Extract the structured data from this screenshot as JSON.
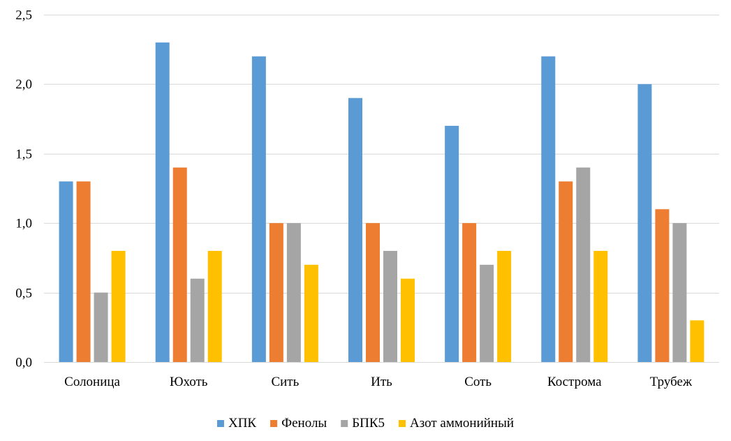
{
  "chart_data": {
    "type": "bar",
    "title": "",
    "xlabel": "",
    "ylabel": "",
    "categories": [
      "Солоница",
      "Юхоть",
      "Сить",
      "Ить",
      "Соть",
      "Кострома",
      "Трубеж"
    ],
    "series": [
      {
        "name": "ХПК",
        "color": "#5B9BD5",
        "values": [
          1.3,
          2.3,
          2.2,
          1.9,
          1.7,
          2.2,
          2.0
        ]
      },
      {
        "name": "Фенолы",
        "color": "#ED7D31",
        "values": [
          1.3,
          1.4,
          1.0,
          1.0,
          1.0,
          1.3,
          1.1
        ]
      },
      {
        "name": "БПК5",
        "color": "#A5A5A5",
        "values": [
          0.5,
          0.6,
          1.0,
          0.8,
          0.7,
          1.4,
          1.0
        ]
      },
      {
        "name": "Азот аммонийный",
        "color": "#FFC000",
        "values": [
          0.8,
          0.8,
          0.7,
          0.6,
          0.8,
          0.8,
          0.3
        ]
      }
    ],
    "ylim": [
      0,
      2.5
    ],
    "yticks": [
      "0,0",
      "0,5",
      "1,0",
      "1,5",
      "2,0",
      "2,5"
    ],
    "grid": true,
    "legend_position": "bottom",
    "colors": {
      "grid": "#D9D9D9",
      "axis": "#D9D9D9"
    }
  }
}
